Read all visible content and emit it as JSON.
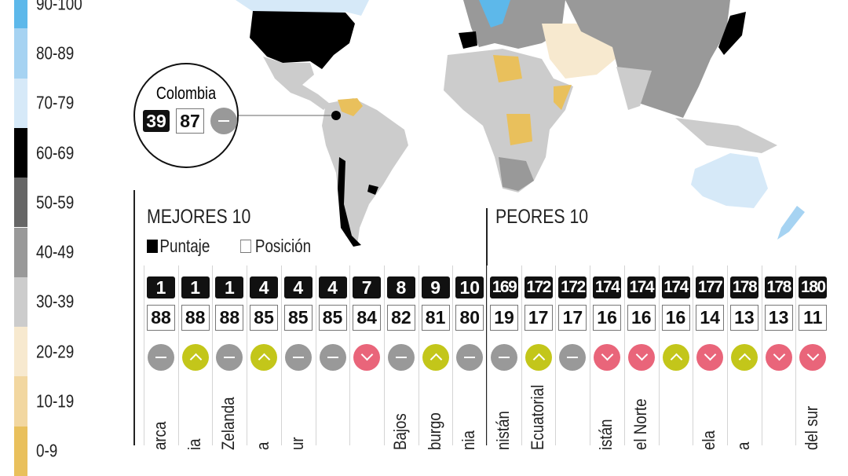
{
  "legend": {
    "title_colors": [
      {
        "label": "90-100",
        "color": "#5db8ea"
      },
      {
        "label": "80-89",
        "color": "#a6d3f2"
      },
      {
        "label": "70-79",
        "color": "#d6e9f8"
      },
      {
        "label": "60-69",
        "color": "#000000"
      },
      {
        "label": "50-59",
        "color": "#666666"
      },
      {
        "label": "40-49",
        "color": "#999999"
      },
      {
        "label": "30-39",
        "color": "#cccccc"
      },
      {
        "label": "20-29",
        "color": "#f7e9cf"
      },
      {
        "label": "10-19",
        "color": "#f2d7a0"
      },
      {
        "label": "0-9",
        "color": "#e9c05c"
      }
    ]
  },
  "callout": {
    "country": "Colombia",
    "score": "39",
    "rank": "87",
    "trend": "same"
  },
  "best": {
    "title": "MEJORES 10",
    "key_score": "Puntaje",
    "key_rank": "Posición",
    "items": [
      {
        "top": "1",
        "bottom": "88",
        "trend": "same",
        "name": "arca"
      },
      {
        "top": "1",
        "bottom": "88",
        "trend": "up",
        "name": "ia"
      },
      {
        "top": "1",
        "bottom": "88",
        "trend": "same",
        "name": "Zelanda"
      },
      {
        "top": "4",
        "bottom": "85",
        "trend": "up",
        "name": "a"
      },
      {
        "top": "4",
        "bottom": "85",
        "trend": "same",
        "name": "ur"
      },
      {
        "top": "4",
        "bottom": "85",
        "trend": "same",
        "name": ""
      },
      {
        "top": "7",
        "bottom": "84",
        "trend": "down",
        "name": ""
      },
      {
        "top": "8",
        "bottom": "82",
        "trend": "same",
        "name": "Bajos"
      },
      {
        "top": "9",
        "bottom": "81",
        "trend": "up",
        "name": "burgo"
      },
      {
        "top": "10",
        "bottom": "80",
        "trend": "same",
        "name": "nia"
      }
    ]
  },
  "worst": {
    "title": "PEORES 10",
    "items": [
      {
        "top": "169",
        "bottom": "19",
        "trend": "same",
        "name": "nistán"
      },
      {
        "top": "172",
        "bottom": "17",
        "trend": "up",
        "name": "Ecuatorial"
      },
      {
        "top": "172",
        "bottom": "17",
        "trend": "same",
        "name": ""
      },
      {
        "top": "174",
        "bottom": "16",
        "trend": "down",
        "name": "istán"
      },
      {
        "top": "174",
        "bottom": "16",
        "trend": "down",
        "name": "el Norte"
      },
      {
        "top": "174",
        "bottom": "16",
        "trend": "up",
        "name": ""
      },
      {
        "top": "177",
        "bottom": "14",
        "trend": "down",
        "name": "ela"
      },
      {
        "top": "178",
        "bottom": "13",
        "trend": "up",
        "name": "a"
      },
      {
        "top": "178",
        "bottom": "13",
        "trend": "down",
        "name": ""
      },
      {
        "top": "180",
        "bottom": "11",
        "trend": "down",
        "name": "del sur"
      }
    ]
  },
  "trend_colors": {
    "same": "#999999",
    "up": "#c3c61a",
    "down": "#e9657a"
  }
}
